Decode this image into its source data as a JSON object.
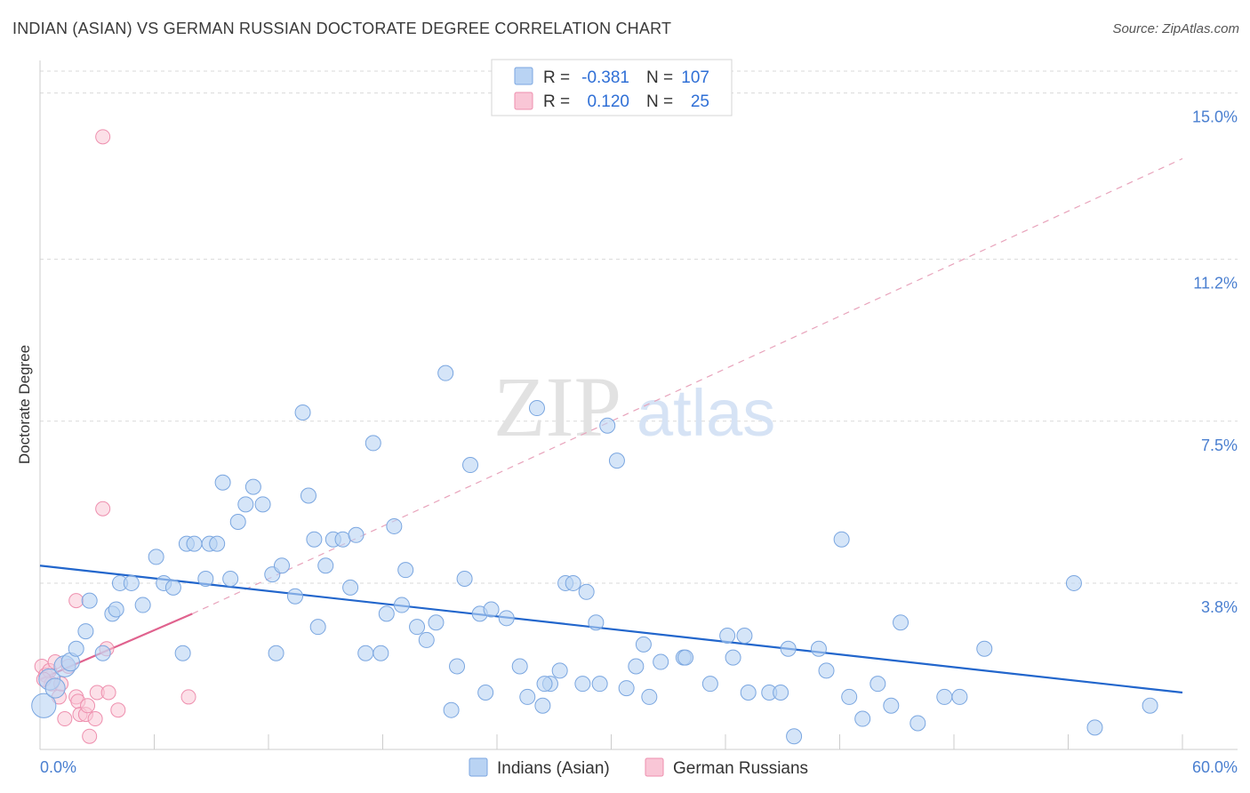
{
  "header": {
    "title": "INDIAN (ASIAN) VS GERMAN RUSSIAN DOCTORATE DEGREE CORRELATION CHART",
    "source": "Source: ZipAtlas.com"
  },
  "watermark": {
    "zip": "ZIP",
    "atlas": "atlas"
  },
  "legend_top": {
    "rows": [
      {
        "r_label": "R =",
        "r_value": "-0.381",
        "n_label": "N =",
        "n_value": "107"
      },
      {
        "r_label": "R =",
        "r_value": "0.120",
        "n_label": "N =",
        "n_value": "25"
      }
    ]
  },
  "colors": {
    "blue_fill": "#b9d3f3",
    "blue_stroke": "#7aa6e0",
    "blue_line": "#2266cc",
    "pink_fill": "#f9c6d6",
    "pink_stroke": "#ee8fae",
    "pink_line": "#e0628e",
    "grid": "#d9d9d9",
    "tick": "#4a7fd0"
  },
  "chart_data": {
    "type": "scatter",
    "title": "INDIAN (ASIAN) VS GERMAN RUSSIAN DOCTORATE DEGREE CORRELATION CHART",
    "xlabel": "",
    "ylabel": "Doctorate Degree",
    "xlim": [
      0,
      60
    ],
    "ylim": [
      0,
      15.5
    ],
    "x_tick_labels": [
      "0.0%",
      "60.0%"
    ],
    "y_ticks": [
      3.8,
      7.5,
      11.2,
      15.0
    ],
    "y_tick_labels": [
      "3.8%",
      "7.5%",
      "11.2%",
      "15.0%"
    ],
    "grid": true,
    "legend_position": "bottom-center",
    "series": [
      {
        "name": "Indians (Asian)",
        "r": -0.381,
        "n": 107,
        "trend": {
          "x": [
            0,
            60
          ],
          "y": [
            4.2,
            1.3
          ],
          "style": "solid"
        },
        "points": [
          [
            0.2,
            1.0,
            1.6
          ],
          [
            0.5,
            1.6,
            1.4
          ],
          [
            0.8,
            1.4,
            1.3
          ],
          [
            1.3,
            1.9,
            1.4
          ],
          [
            1.6,
            2.0,
            1.2
          ],
          [
            1.9,
            2.3,
            1.0
          ],
          [
            2.4,
            2.7,
            1.0
          ],
          [
            3.3,
            2.2,
            1.0
          ],
          [
            2.6,
            3.4,
            1.0
          ],
          [
            3.8,
            3.1,
            1.0
          ],
          [
            4.2,
            3.8,
            1.0
          ],
          [
            4.8,
            3.8,
            1.0
          ],
          [
            5.4,
            3.3,
            1.0
          ],
          [
            4.0,
            3.2,
            1.0
          ],
          [
            6.1,
            4.4,
            1.0
          ],
          [
            6.5,
            3.8,
            1.0
          ],
          [
            7.0,
            3.7,
            1.0
          ],
          [
            7.5,
            2.2,
            1.0
          ],
          [
            7.7,
            4.7,
            1.0
          ],
          [
            8.1,
            4.7,
            1.0
          ],
          [
            8.7,
            3.9,
            1.0
          ],
          [
            8.9,
            4.7,
            1.0
          ],
          [
            9.3,
            4.7,
            1.0
          ],
          [
            9.6,
            6.1,
            1.0
          ],
          [
            10.0,
            3.9,
            1.0
          ],
          [
            10.4,
            5.2,
            1.0
          ],
          [
            10.8,
            5.6,
            1.0
          ],
          [
            11.2,
            6.0,
            1.0
          ],
          [
            11.7,
            5.6,
            1.0
          ],
          [
            12.2,
            4.0,
            1.0
          ],
          [
            12.4,
            2.2,
            1.0
          ],
          [
            12.7,
            4.2,
            1.0
          ],
          [
            13.4,
            3.5,
            1.0
          ],
          [
            13.8,
            7.7,
            1.0
          ],
          [
            14.1,
            5.8,
            1.0
          ],
          [
            14.6,
            2.8,
            1.0
          ],
          [
            14.4,
            4.8,
            1.0
          ],
          [
            15.0,
            4.2,
            1.0
          ],
          [
            15.4,
            4.8,
            1.0
          ],
          [
            15.9,
            4.8,
            1.0
          ],
          [
            16.3,
            3.7,
            1.0
          ],
          [
            16.6,
            4.9,
            1.0
          ],
          [
            17.1,
            2.2,
            1.0
          ],
          [
            17.5,
            7.0,
            1.0
          ],
          [
            17.9,
            2.2,
            1.0
          ],
          [
            18.2,
            3.1,
            1.0
          ],
          [
            18.6,
            5.1,
            1.0
          ],
          [
            19.0,
            3.3,
            1.0
          ],
          [
            19.2,
            4.1,
            1.0
          ],
          [
            19.8,
            2.8,
            1.0
          ],
          [
            20.3,
            2.5,
            1.0
          ],
          [
            20.8,
            2.9,
            1.0
          ],
          [
            21.3,
            8.6,
            1.0
          ],
          [
            21.6,
            0.9,
            1.0
          ],
          [
            21.9,
            1.9,
            1.0
          ],
          [
            22.3,
            3.9,
            1.0
          ],
          [
            22.6,
            6.5,
            1.0
          ],
          [
            23.1,
            3.1,
            1.0
          ],
          [
            23.4,
            1.3,
            1.0
          ],
          [
            23.7,
            3.2,
            1.0
          ],
          [
            24.5,
            3.0,
            1.0
          ],
          [
            25.2,
            1.9,
            1.0
          ],
          [
            25.6,
            1.2,
            1.0
          ],
          [
            26.1,
            7.8,
            1.0
          ],
          [
            26.4,
            1.0,
            1.0
          ],
          [
            26.8,
            1.5,
            1.0
          ],
          [
            27.3,
            1.8,
            1.0
          ],
          [
            27.6,
            3.8,
            1.0
          ],
          [
            28.0,
            3.8,
            1.0
          ],
          [
            28.5,
            1.5,
            1.0
          ],
          [
            28.7,
            3.6,
            1.0
          ],
          [
            29.4,
            1.5,
            1.0
          ],
          [
            29.2,
            2.9,
            1.0
          ],
          [
            29.8,
            7.4,
            1.0
          ],
          [
            30.3,
            6.6,
            1.0
          ],
          [
            30.8,
            1.4,
            1.0
          ],
          [
            31.3,
            1.9,
            1.0
          ],
          [
            31.7,
            2.4,
            1.0
          ],
          [
            32.0,
            1.2,
            1.0
          ],
          [
            32.6,
            2.0,
            1.0
          ],
          [
            33.8,
            2.1,
            1.0
          ],
          [
            33.9,
            2.1,
            1.0
          ],
          [
            35.2,
            1.5,
            1.0
          ],
          [
            36.1,
            2.6,
            1.0
          ],
          [
            36.4,
            2.1,
            1.0
          ],
          [
            37.0,
            2.6,
            1.0
          ],
          [
            37.2,
            1.3,
            1.0
          ],
          [
            38.3,
            1.3,
            1.0
          ],
          [
            38.9,
            1.3,
            1.0
          ],
          [
            39.3,
            2.3,
            1.0
          ],
          [
            39.6,
            0.3,
            1.0
          ],
          [
            40.9,
            2.3,
            1.0
          ],
          [
            41.3,
            1.8,
            1.0
          ],
          [
            42.1,
            4.8,
            1.0
          ],
          [
            42.5,
            1.2,
            1.0
          ],
          [
            43.2,
            0.7,
            1.0
          ],
          [
            44.0,
            1.5,
            1.0
          ],
          [
            44.7,
            1.0,
            1.0
          ],
          [
            45.2,
            2.9,
            1.0
          ],
          [
            46.1,
            0.6,
            1.0
          ],
          [
            47.5,
            1.2,
            1.0
          ],
          [
            48.3,
            1.2,
            1.0
          ],
          [
            49.6,
            2.3,
            1.0
          ],
          [
            54.3,
            3.8,
            1.0
          ],
          [
            55.4,
            0.5,
            1.0
          ],
          [
            58.3,
            1.0,
            1.0
          ],
          [
            26.5,
            1.5,
            1.0
          ]
        ]
      },
      {
        "name": "German Russians",
        "r": 0.12,
        "n": 25,
        "trend": {
          "x": [
            0,
            8
          ],
          "y": [
            1.6,
            3.1
          ],
          "style": "solid"
        },
        "trend_extended": {
          "x": [
            8,
            60
          ],
          "y": [
            3.1,
            13.5
          ],
          "style": "dashed"
        },
        "points": [
          [
            0.1,
            1.9,
            1.0
          ],
          [
            0.3,
            1.7,
            1.0
          ],
          [
            0.5,
            1.8,
            1.0
          ],
          [
            0.6,
            1.5,
            1.0
          ],
          [
            0.8,
            2.0,
            1.0
          ],
          [
            1.0,
            1.2,
            1.0
          ],
          [
            1.1,
            1.5,
            1.0
          ],
          [
            1.3,
            0.7,
            1.0
          ],
          [
            1.5,
            1.9,
            1.0
          ],
          [
            1.9,
            3.4,
            1.0
          ],
          [
            1.9,
            1.2,
            1.0
          ],
          [
            2.0,
            1.1,
            1.0
          ],
          [
            2.1,
            0.8,
            1.0
          ],
          [
            2.4,
            0.8,
            1.0
          ],
          [
            2.5,
            1.0,
            1.0
          ],
          [
            2.6,
            0.3,
            1.0
          ],
          [
            2.9,
            0.7,
            1.0
          ],
          [
            3.0,
            1.3,
            1.0
          ],
          [
            3.3,
            14.0,
            1.0
          ],
          [
            3.3,
            5.5,
            1.0
          ],
          [
            3.5,
            2.3,
            1.0
          ],
          [
            3.6,
            1.3,
            1.0
          ],
          [
            4.1,
            0.9,
            1.0
          ],
          [
            7.8,
            1.2,
            1.0
          ],
          [
            0.2,
            1.6,
            1.0
          ]
        ]
      }
    ]
  }
}
